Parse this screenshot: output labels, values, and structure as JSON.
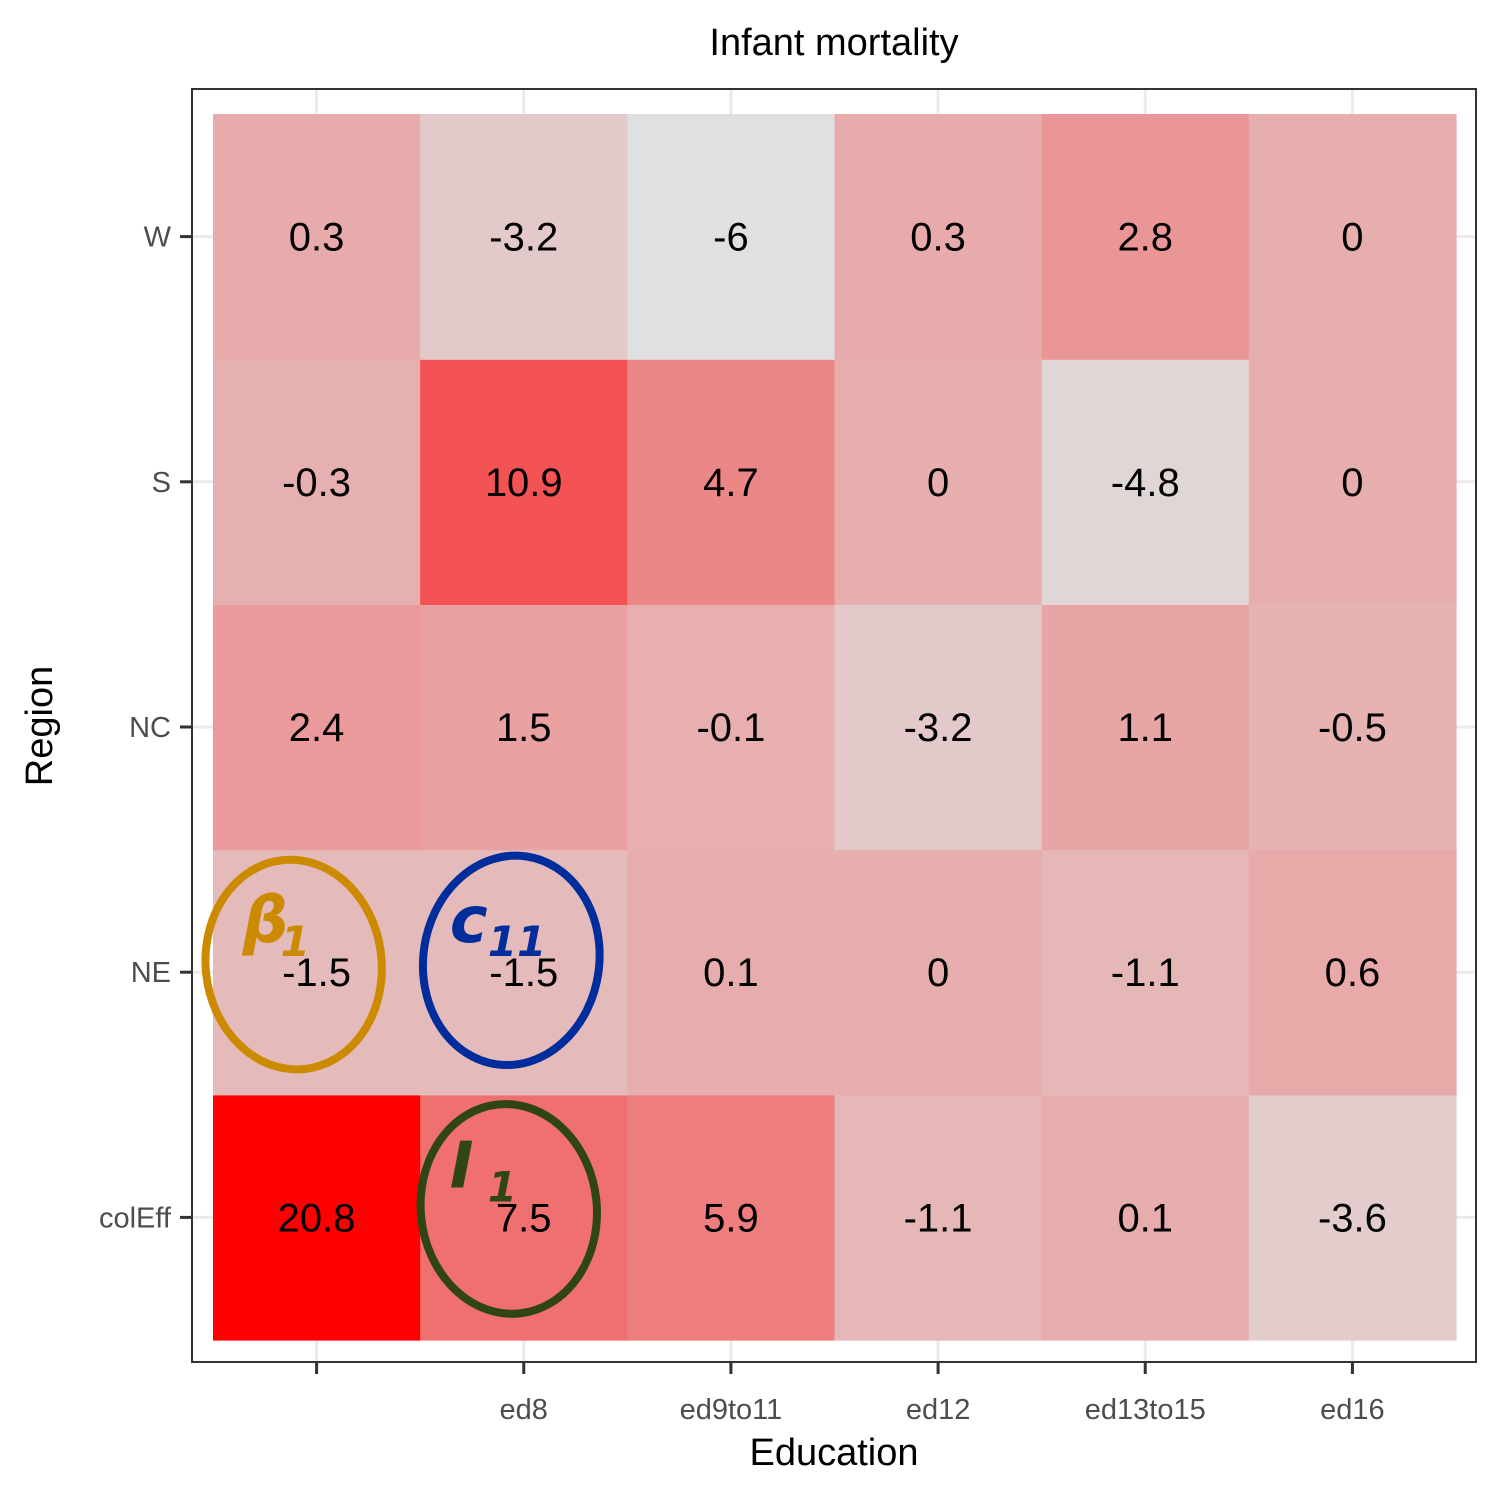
{
  "chart_data": {
    "type": "heatmap",
    "title": "Infant mortality",
    "xlabel": "Education",
    "ylabel": "Region",
    "x_categories": [
      "",
      "ed8",
      "ed9to11",
      "ed12",
      "ed13to15",
      "ed16"
    ],
    "y_categories": [
      "colEff",
      "NE",
      "NC",
      "S",
      "W"
    ],
    "values": [
      [
        20.8,
        7.5,
        5.9,
        -1.1,
        0.1,
        -3.6
      ],
      [
        -1.5,
        -1.5,
        0.1,
        0,
        -1.1,
        0.6
      ],
      [
        2.4,
        1.5,
        -0.1,
        -3.2,
        1.1,
        -0.5
      ],
      [
        -0.3,
        10.9,
        4.7,
        0,
        -4.8,
        0
      ],
      [
        0.3,
        -3.2,
        -6,
        0.3,
        2.8,
        0
      ]
    ],
    "value_labels": [
      [
        "20.8",
        "7.5",
        "5.9",
        "-1.1",
        "0.1",
        "-3.6"
      ],
      [
        "-1.5",
        "-1.5",
        "0.1",
        "0",
        "-1.1",
        "0.6"
      ],
      [
        "2.4",
        "1.5",
        "-0.1",
        "-3.2",
        "1.1",
        "-0.5"
      ],
      [
        "-0.3",
        "10.9",
        "4.7",
        "0",
        "-4.8",
        "0"
      ],
      [
        "0.3",
        "-3.2",
        "-6",
        "0.3",
        "2.8",
        "0"
      ]
    ],
    "color_scale": {
      "low": "#e0e0e0",
      "high": "#ff0000",
      "min": -6,
      "max": 20.8
    },
    "grid": true,
    "legend": "none",
    "annotations": [
      {
        "text": "β",
        "subscript": "1",
        "row": "NE",
        "column": "",
        "color": "#cc8a00"
      },
      {
        "text": "c",
        "subscript": "11",
        "row": "NE",
        "column": "ed8",
        "color": "#002d9c"
      },
      {
        "text": "I",
        "subscript": "1",
        "row": "colEff",
        "column": "ed8",
        "color": "#2f4514"
      }
    ]
  }
}
